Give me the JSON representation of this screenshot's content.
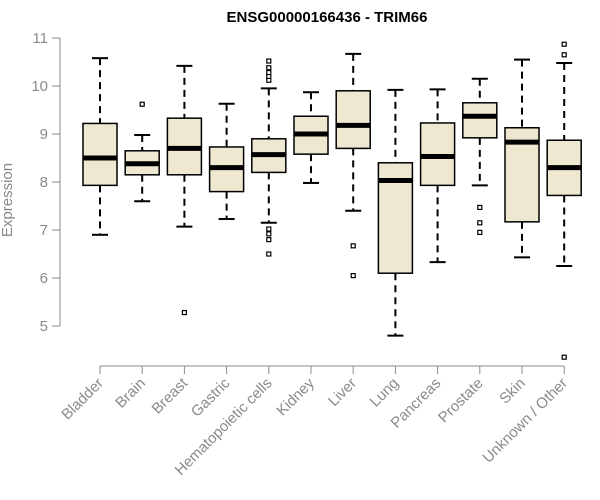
{
  "chart_data": {
    "type": "box",
    "title": "ENSG00000166436 - TRIM66",
    "ylabel": "Expression",
    "xlabel": "",
    "ylim": [
      4.5,
      11.1
    ],
    "yticks": [
      5,
      6,
      7,
      8,
      9,
      10,
      11
    ],
    "grid": false,
    "colors": {
      "box_fill": "#efe8d0",
      "stroke": "#000000",
      "axis": "#8a8a8a",
      "label": "#8a8a8a"
    },
    "categories": [
      "Bladder",
      "Brain",
      "Breast",
      "Gastric",
      "Hematopoietic cells",
      "Kidney",
      "Liver",
      "Lung",
      "Pancreas",
      "Prostate",
      "Skin",
      "Unknown / Other"
    ],
    "boxes": [
      {
        "category": "Bladder",
        "whisker_low": 6.9,
        "q1": 7.93,
        "median": 8.5,
        "q3": 9.22,
        "whisker_high": 10.58,
        "outliers": []
      },
      {
        "category": "Brain",
        "whisker_low": 7.6,
        "q1": 8.15,
        "median": 8.38,
        "q3": 8.65,
        "whisker_high": 8.98,
        "outliers": [
          9.62
        ]
      },
      {
        "category": "Breast",
        "whisker_low": 7.07,
        "q1": 8.15,
        "median": 8.7,
        "q3": 9.33,
        "whisker_high": 10.42,
        "outliers": [
          5.28
        ]
      },
      {
        "category": "Gastric",
        "whisker_low": 7.23,
        "q1": 7.8,
        "median": 8.3,
        "q3": 8.73,
        "whisker_high": 9.63,
        "outliers": []
      },
      {
        "category": "Hematopoietic cells",
        "whisker_low": 7.15,
        "q1": 8.2,
        "median": 8.57,
        "q3": 8.9,
        "whisker_high": 9.95,
        "outliers": [
          6.5,
          6.8,
          6.92,
          7.02,
          10.12,
          10.2,
          10.28,
          10.38,
          10.52
        ]
      },
      {
        "category": "Kidney",
        "whisker_low": 7.98,
        "q1": 8.58,
        "median": 9.0,
        "q3": 9.37,
        "whisker_high": 9.87,
        "outliers": []
      },
      {
        "category": "Liver",
        "whisker_low": 7.4,
        "q1": 8.7,
        "median": 9.18,
        "q3": 9.9,
        "whisker_high": 10.67,
        "outliers": [
          6.05,
          6.67
        ]
      },
      {
        "category": "Lung",
        "whisker_low": 4.8,
        "q1": 6.1,
        "median": 8.03,
        "q3": 8.4,
        "whisker_high": 9.92,
        "outliers": []
      },
      {
        "category": "Pancreas",
        "whisker_low": 6.33,
        "q1": 7.93,
        "median": 8.53,
        "q3": 9.23,
        "whisker_high": 9.93,
        "outliers": []
      },
      {
        "category": "Prostate",
        "whisker_low": 7.93,
        "q1": 8.92,
        "median": 9.37,
        "q3": 9.65,
        "whisker_high": 10.15,
        "outliers": [
          6.95,
          7.15,
          7.47
        ]
      },
      {
        "category": "Skin",
        "whisker_low": 6.43,
        "q1": 7.17,
        "median": 8.83,
        "q3": 9.13,
        "whisker_high": 10.55,
        "outliers": []
      },
      {
        "category": "Unknown / Other",
        "whisker_low": 6.25,
        "q1": 7.72,
        "median": 8.3,
        "q3": 8.87,
        "whisker_high": 10.48,
        "outliers": [
          4.35,
          10.65,
          10.87
        ]
      }
    ]
  }
}
